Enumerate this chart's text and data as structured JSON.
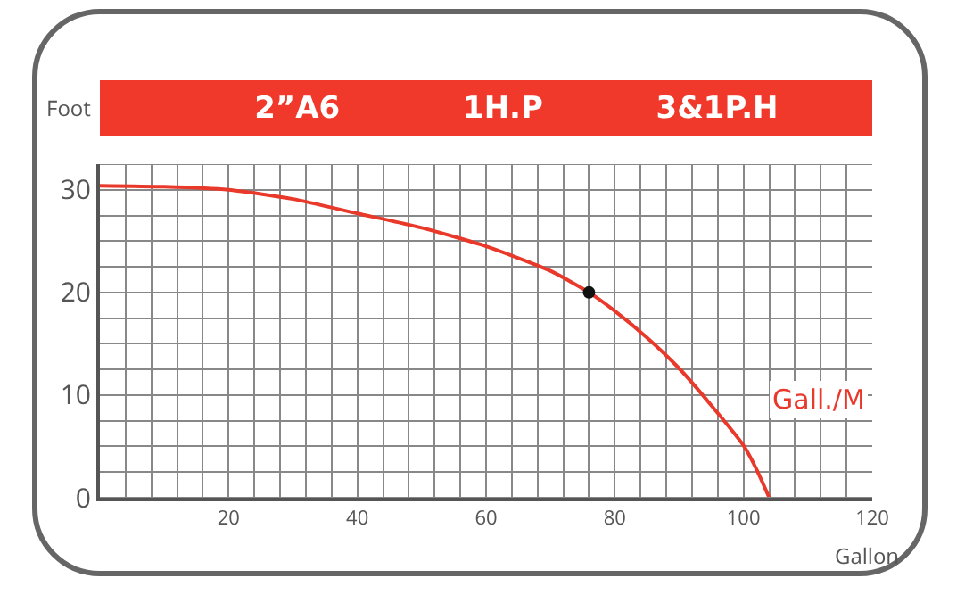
{
  "chart_data": {
    "type": "line",
    "annotations": [
      "2”A6",
      "1H.P",
      "3&1P.H"
    ],
    "xlabel": "Gallon",
    "ylabel": "Foot",
    "x": [
      0,
      10,
      20,
      30,
      40,
      50,
      60,
      70,
      76,
      80,
      85,
      90,
      95,
      100,
      102,
      104
    ],
    "series": [
      {
        "name": "Gall./M",
        "color": "#e8392b",
        "values": [
          30.4,
          30.3,
          30.0,
          29.1,
          27.7,
          26.3,
          24.5,
          22.1,
          20,
          18.2,
          15.6,
          12.6,
          9.0,
          5.1,
          2.8,
          0
        ]
      },
      {
        "type": "scatter",
        "color": "#111111",
        "marker": "circle",
        "x": [
          76
        ],
        "values": [
          20
        ]
      }
    ],
    "xlim": [
      0,
      120
    ],
    "ylim": [
      0,
      32.5
    ],
    "xticks": [
      {
        "value": 0,
        "label": null
      },
      {
        "value": 4,
        "label": null
      },
      {
        "value": 8,
        "label": null
      },
      {
        "value": 12,
        "label": null
      },
      {
        "value": 16,
        "label": null
      },
      20,
      {
        "value": 24,
        "label": null
      },
      {
        "value": 28,
        "label": null
      },
      {
        "value": 32,
        "label": null
      },
      {
        "value": 36,
        "label": null
      },
      40,
      {
        "value": 44,
        "label": null
      },
      {
        "value": 48,
        "label": null
      },
      {
        "value": 52,
        "label": null
      },
      {
        "value": 56,
        "label": null
      },
      60,
      {
        "value": 64,
        "label": null
      },
      {
        "value": 68,
        "label": null
      },
      {
        "value": 72,
        "label": null
      },
      {
        "value": 76,
        "label": null
      },
      80,
      {
        "value": 84,
        "label": null
      },
      {
        "value": 88,
        "label": null
      },
      {
        "value": 92,
        "label": null
      },
      {
        "value": 96,
        "label": null
      },
      100,
      {
        "value": 104,
        "label": null
      },
      {
        "value": 108,
        "label": null
      },
      {
        "value": 112,
        "label": null
      },
      {
        "value": 116,
        "label": null
      },
      120
    ],
    "yticks": [
      0,
      {
        "value": 2.5,
        "label": null
      },
      {
        "value": 5,
        "label": null
      },
      {
        "value": 7.5,
        "label": null
      },
      10,
      {
        "value": 12.5,
        "label": null
      },
      {
        "value": 15,
        "label": null
      },
      {
        "value": 17.5,
        "label": null
      },
      20,
      {
        "value": 22.5,
        "label": null
      },
      {
        "value": 25,
        "label": null
      },
      {
        "value": 27.5,
        "label": null
      },
      30,
      {
        "value": 32.5,
        "label": null
      }
    ],
    "grid": true,
    "legend": false,
    "line_style": "solid"
  }
}
